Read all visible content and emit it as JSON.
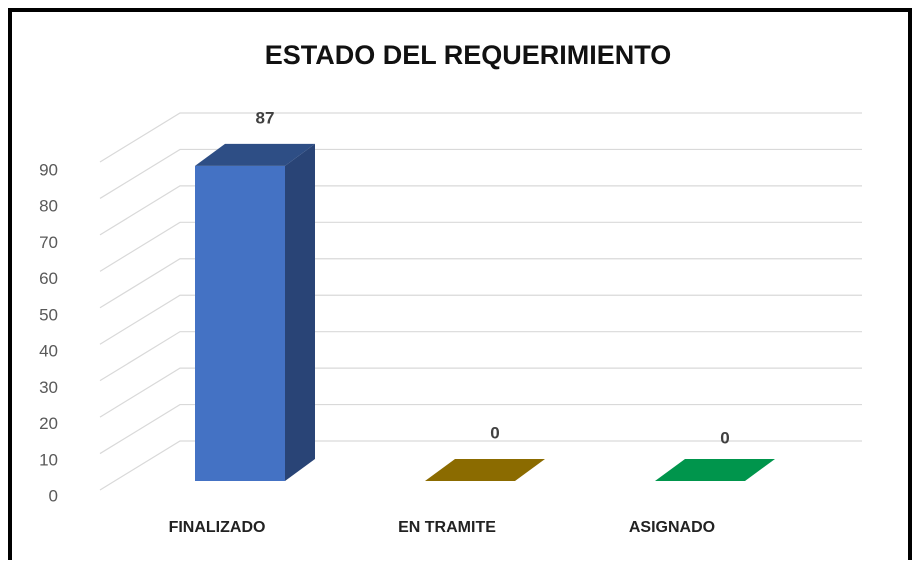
{
  "chart_data": {
    "type": "bar3d",
    "title": "ESTADO DEL REQUERIMIENTO",
    "categories": [
      "FINALIZADO",
      "EN TRAMITE",
      "ASIGNADO"
    ],
    "values": [
      87,
      0,
      0
    ],
    "colors": [
      "#4472c4",
      "#8b6b00",
      "#00954c"
    ],
    "ylim": [
      0,
      90
    ],
    "yticks": [
      0,
      10,
      20,
      30,
      40,
      50,
      60,
      70,
      80,
      90
    ],
    "grid": true
  }
}
